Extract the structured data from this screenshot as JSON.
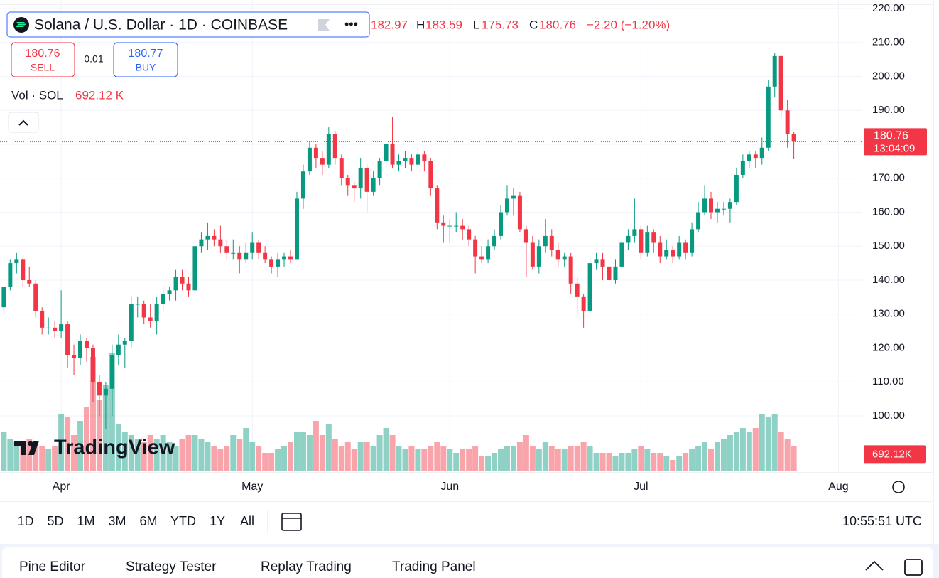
{
  "header": {
    "symbol": "Solana / U.S. Dollar · 1D · COINBASE",
    "ohlc": {
      "open": "182.97",
      "high_key": "H",
      "high": "183.59",
      "low_key": "L",
      "low": "175.73",
      "close_key": "C",
      "close": "180.76",
      "change": "−2.20 (−1.20%)"
    },
    "sell_price": "180.76",
    "sell_label": "SELL",
    "spread": "0.01",
    "buy_price": "180.77",
    "buy_label": "BUY",
    "vol_label": "Vol · SOL",
    "vol_value": "692.12 K",
    "logo": "TradingView"
  },
  "toolbar": {
    "ranges": [
      "1D",
      "5D",
      "1M",
      "3M",
      "6M",
      "YTD",
      "1Y",
      "All"
    ],
    "clock": "10:55:51 UTC"
  },
  "tabs": [
    "Pine Editor",
    "Strategy Tester",
    "Replay Trading",
    "Trading Panel"
  ],
  "chart_data": {
    "type": "candlestick",
    "up_color": "#089981",
    "down_color": "#f23645",
    "grid": true,
    "xlim": [
      -0.6,
      134.3
    ],
    "xticks": [
      {
        "value": 9,
        "label": "Apr"
      },
      {
        "value": 39,
        "label": "May"
      },
      {
        "value": 70,
        "label": "Jun"
      },
      {
        "value": 100,
        "label": "Jul"
      },
      {
        "value": 131,
        "label": "Aug"
      }
    ],
    "ylim": [
      83.87,
      220.42
    ],
    "yticks": [
      {
        "value": 100,
        "label": "100.00"
      },
      {
        "value": 110,
        "label": "110.00"
      },
      {
        "value": 120,
        "label": "120.00"
      },
      {
        "value": 130,
        "label": "130.00"
      },
      {
        "value": 140,
        "label": "140.00"
      },
      {
        "value": 150,
        "label": "150.00"
      },
      {
        "value": 160,
        "label": "160.00"
      },
      {
        "value": 170,
        "label": "170.00"
      },
      {
        "value": 180,
        "label": "180.00"
      },
      {
        "value": 190,
        "label": "190.00"
      },
      {
        "value": 200,
        "label": "200.00"
      },
      {
        "value": 210,
        "label": "210.00"
      },
      {
        "value": 220,
        "label": "220.00"
      }
    ],
    "last_price": {
      "value": 180.76,
      "label": "180.76"
    },
    "countdown": "13:04:09",
    "last_volume": {
      "value": 692.12,
      "label": "692.12K"
    },
    "candles": [
      [
        132,
        138,
        130,
        138
      ],
      [
        138,
        146,
        137,
        145
      ],
      [
        145,
        148,
        142,
        146
      ],
      [
        146,
        147,
        138,
        140
      ],
      [
        140,
        144,
        138,
        139
      ],
      [
        139,
        140,
        129,
        131
      ],
      [
        131,
        132,
        124,
        126
      ],
      [
        126,
        129,
        124,
        126
      ],
      [
        126,
        128,
        123,
        125
      ],
      [
        125,
        137,
        123,
        127
      ],
      [
        127,
        128,
        114,
        118
      ],
      [
        118,
        121,
        112,
        117
      ],
      [
        117,
        124,
        115,
        122
      ],
      [
        122,
        123,
        116,
        120
      ],
      [
        120,
        121,
        104,
        110
      ],
      [
        110,
        112,
        100,
        106
      ],
      [
        106,
        110,
        96,
        108
      ],
      [
        108,
        121,
        100,
        118
      ],
      [
        118,
        124,
        115,
        121
      ],
      [
        121,
        123,
        114,
        122
      ],
      [
        122,
        135,
        120,
        133
      ],
      [
        133,
        135,
        129,
        133
      ],
      [
        133,
        134,
        127,
        129
      ],
      [
        129,
        133,
        126,
        128
      ],
      [
        128,
        135,
        124,
        133
      ],
      [
        133,
        138,
        131,
        136
      ],
      [
        136,
        138,
        134,
        137
      ],
      [
        137,
        143,
        134,
        141
      ],
      [
        141,
        143,
        137,
        139
      ],
      [
        139,
        141,
        135,
        137
      ],
      [
        137,
        151,
        136,
        150
      ],
      [
        150,
        154,
        148,
        152
      ],
      [
        152,
        157,
        149,
        153
      ],
      [
        153,
        155,
        150,
        152
      ],
      [
        152,
        156,
        148,
        150
      ],
      [
        150,
        152,
        146,
        148
      ],
      [
        148,
        152,
        146,
        148
      ],
      [
        148,
        150,
        142,
        146
      ],
      [
        146,
        151,
        145,
        148
      ],
      [
        148,
        154,
        146,
        151
      ],
      [
        151,
        152,
        146,
        148
      ],
      [
        148,
        150,
        145,
        146
      ],
      [
        146,
        147,
        142,
        144
      ],
      [
        144,
        148,
        141,
        146
      ],
      [
        146,
        148,
        144,
        147
      ],
      [
        147,
        149,
        145,
        146
      ],
      [
        146,
        166,
        146,
        164
      ],
      [
        164,
        174,
        161,
        172
      ],
      [
        172,
        181,
        171,
        179
      ],
      [
        179,
        180,
        173,
        176
      ],
      [
        176,
        178,
        171,
        174
      ],
      [
        174,
        185,
        173,
        183
      ],
      [
        183,
        184,
        174,
        176
      ],
      [
        176,
        177,
        168,
        170
      ],
      [
        170,
        171,
        165,
        168
      ],
      [
        168,
        169,
        163,
        167
      ],
      [
        167,
        176,
        164,
        173
      ],
      [
        173,
        174,
        160,
        166
      ],
      [
        166,
        172,
        165,
        170
      ],
      [
        170,
        176,
        168,
        175
      ],
      [
        175,
        181,
        173,
        180
      ],
      [
        180,
        188,
        173,
        174
      ],
      [
        174,
        177,
        172,
        175
      ],
      [
        175,
        178,
        173,
        176
      ],
      [
        176,
        177,
        172,
        174
      ],
      [
        174,
        179,
        173,
        177
      ],
      [
        177,
        178,
        172,
        175
      ],
      [
        175,
        176,
        165,
        167
      ],
      [
        167,
        168,
        155,
        157
      ],
      [
        157,
        159,
        151,
        156
      ],
      [
        156,
        158,
        151,
        156
      ],
      [
        156,
        160,
        154,
        156
      ],
      [
        156,
        158,
        152,
        155
      ],
      [
        155,
        156,
        150,
        152
      ],
      [
        152,
        153,
        142,
        147
      ],
      [
        147,
        150,
        145,
        146
      ],
      [
        146,
        152,
        145,
        150
      ],
      [
        150,
        155,
        149,
        153
      ],
      [
        153,
        162,
        152,
        160
      ],
      [
        160,
        168,
        159,
        164
      ],
      [
        164,
        167,
        159,
        165
      ],
      [
        165,
        166,
        154,
        155
      ],
      [
        155,
        156,
        141,
        151
      ],
      [
        151,
        153,
        143,
        144
      ],
      [
        144,
        152,
        142,
        150
      ],
      [
        150,
        158,
        148,
        153
      ],
      [
        153,
        155,
        147,
        149
      ],
      [
        149,
        151,
        144,
        146
      ],
      [
        146,
        148,
        144,
        147
      ],
      [
        147,
        148,
        136,
        139
      ],
      [
        139,
        141,
        130,
        135
      ],
      [
        135,
        136,
        126,
        131
      ],
      [
        131,
        147,
        130,
        145
      ],
      [
        145,
        148,
        143,
        146
      ],
      [
        146,
        148,
        140,
        144
      ],
      [
        144,
        145,
        138,
        140
      ],
      [
        140,
        146,
        139,
        144
      ],
      [
        144,
        152,
        143,
        151
      ],
      [
        151,
        155,
        149,
        153
      ],
      [
        153,
        164,
        151,
        155
      ],
      [
        155,
        156,
        146,
        148
      ],
      [
        148,
        156,
        147,
        154
      ],
      [
        154,
        155,
        148,
        151
      ],
      [
        151,
        153,
        145,
        147
      ],
      [
        147,
        152,
        146,
        149
      ],
      [
        149,
        150,
        145,
        147
      ],
      [
        147,
        153,
        146,
        151
      ],
      [
        151,
        152,
        146,
        148
      ],
      [
        148,
        157,
        147,
        155
      ],
      [
        155,
        163,
        154,
        160
      ],
      [
        160,
        168,
        159,
        164
      ],
      [
        164,
        166,
        158,
        160
      ],
      [
        160,
        163,
        157,
        161
      ],
      [
        161,
        163,
        159,
        161
      ],
      [
        161,
        164,
        157,
        163
      ],
      [
        163,
        173,
        162,
        171
      ],
      [
        171,
        177,
        170,
        175
      ],
      [
        175,
        178,
        173,
        177
      ],
      [
        177,
        178,
        173,
        176
      ],
      [
        176,
        182,
        174,
        179
      ],
      [
        179,
        199,
        178,
        197
      ],
      [
        197,
        207,
        194,
        206
      ],
      [
        206,
        206,
        188,
        190
      ],
      [
        190,
        193,
        179,
        183
      ],
      [
        182.97,
        183.59,
        175.73,
        180.76
      ]
    ],
    "volumes": [
      1100,
      900,
      800,
      700,
      900,
      800,
      700,
      600,
      700,
      1600,
      1500,
      1000,
      1400,
      1800,
      3200,
      2000,
      2400,
      3300,
      1300,
      1100,
      1000,
      900,
      800,
      1000,
      900,
      1000,
      800,
      700,
      900,
      1000,
      1000,
      900,
      800,
      700,
      600,
      700,
      1000,
      900,
      1200,
      800,
      700,
      500,
      500,
      600,
      700,
      800,
      1100,
      1100,
      1000,
      1400,
      1000,
      1300,
      900,
      700,
      800,
      600,
      800,
      800,
      700,
      1000,
      1200,
      1000,
      700,
      600,
      700,
      600,
      600,
      700,
      800,
      700,
      600,
      500,
      600,
      600,
      700,
      400,
      400,
      500,
      600,
      700,
      700,
      800,
      1000,
      700,
      600,
      800,
      700,
      600,
      600,
      700,
      700,
      800,
      700,
      500,
      500,
      500,
      400,
      500,
      500,
      600,
      700,
      600,
      500,
      500,
      400,
      300,
      400,
      500,
      600,
      700,
      800,
      600,
      800,
      900,
      1000,
      1100,
      1200,
      1100,
      1200,
      1600,
      1500,
      1600,
      1100,
      900,
      692.12
    ]
  }
}
